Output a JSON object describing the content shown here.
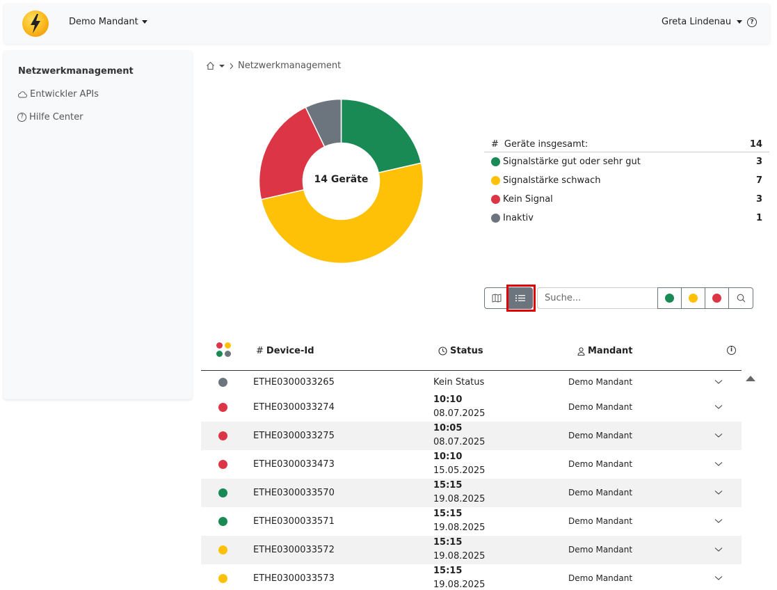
{
  "header": {
    "tenant": "Demo Mandant",
    "user": "Greta Lindenau",
    "help_icon": "question-circle-icon",
    "logo_icon": "lightning-bolt-icon"
  },
  "sidebar": {
    "title": "Netzwerkmanagement",
    "items": [
      {
        "label": "Entwickler APIs",
        "icon": "cloud-icon"
      },
      {
        "label": "Hilfe Center",
        "icon": "question-circle-icon"
      }
    ]
  },
  "breadcrumb": {
    "home_icon": "home-icon",
    "current": "Netzwerkmanagement"
  },
  "chart_data": {
    "type": "pie",
    "center_label": "14 Geräte",
    "categories": [
      "Signalstärke gut oder sehr gut",
      "Signalstärke schwach",
      "Kein Signal",
      "Inaktiv"
    ],
    "values": [
      3,
      7,
      3,
      1
    ],
    "colors": [
      "#1a8a55",
      "#ffc107",
      "#dc3545",
      "#6c757d"
    ]
  },
  "summary": {
    "total_label": "Geräte insgesamt:",
    "total_prefix": "#",
    "total_value": "14",
    "rows": [
      {
        "label": "Signalstärke gut oder sehr gut",
        "value": "3",
        "color": "#1a8a55"
      },
      {
        "label": "Signalstärke schwach",
        "value": "7",
        "color": "#ffc107"
      },
      {
        "label": "Kein Signal",
        "value": "3",
        "color": "#dc3545"
      },
      {
        "label": "Inaktiv",
        "value": "1",
        "color": "#6c757d"
      }
    ]
  },
  "toolbar": {
    "map_view_icon": "map-icon",
    "list_view_icon": "list-icon",
    "search_placeholder": "Suche...",
    "filter_colors": [
      "#1a8a55",
      "#ffc107",
      "#dc3545"
    ],
    "search_icon": "search-icon"
  },
  "table": {
    "headers": {
      "device_id": "Device-Id",
      "device_id_prefix": "#",
      "status": "Status",
      "tenant": "Mandant"
    },
    "rows": [
      {
        "color": "#6c757d",
        "id": "ETHE0300033265",
        "status_text": "Kein Status",
        "time": "",
        "date": "",
        "tenant": "Demo Mandant"
      },
      {
        "color": "#dc3545",
        "id": "ETHE0300033274",
        "status_text": "",
        "time": "10:10",
        "date": "08.07.2025",
        "tenant": "Demo Mandant"
      },
      {
        "color": "#dc3545",
        "id": "ETHE0300033275",
        "status_text": "",
        "time": "10:05",
        "date": "08.07.2025",
        "tenant": "Demo Mandant"
      },
      {
        "color": "#dc3545",
        "id": "ETHE0300033473",
        "status_text": "",
        "time": "10:10",
        "date": "15.05.2025",
        "tenant": "Demo Mandant"
      },
      {
        "color": "#1a8a55",
        "id": "ETHE0300033570",
        "status_text": "",
        "time": "15:15",
        "date": "19.08.2025",
        "tenant": "Demo Mandant"
      },
      {
        "color": "#1a8a55",
        "id": "ETHE0300033571",
        "status_text": "",
        "time": "15:15",
        "date": "19.08.2025",
        "tenant": "Demo Mandant"
      },
      {
        "color": "#ffc107",
        "id": "ETHE0300033572",
        "status_text": "",
        "time": "15:15",
        "date": "19.08.2025",
        "tenant": "Demo Mandant"
      },
      {
        "color": "#ffc107",
        "id": "ETHE0300033573",
        "status_text": "",
        "time": "15:15",
        "date": "19.08.2025",
        "tenant": "Demo Mandant"
      }
    ]
  }
}
